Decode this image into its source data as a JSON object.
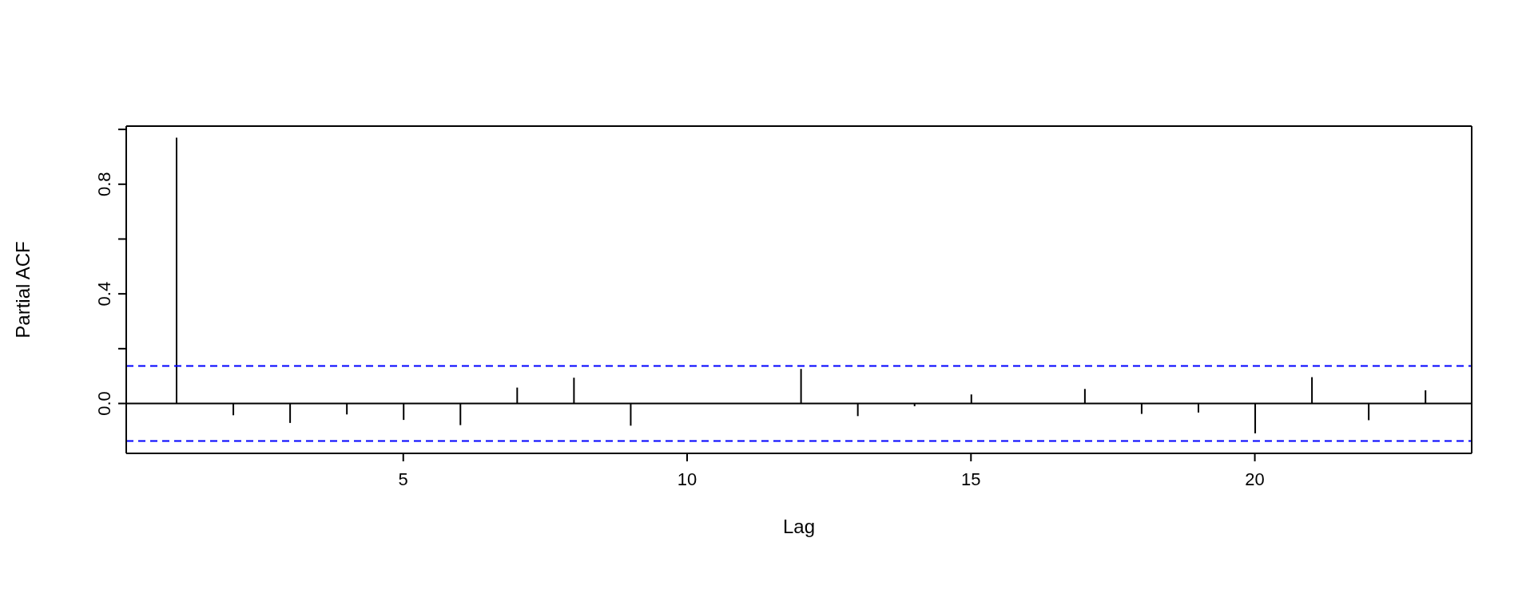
{
  "chart_data": {
    "type": "bar",
    "xlabel": "Lag",
    "ylabel": "Partial ACF",
    "x": [
      1,
      2,
      3,
      4,
      5,
      6,
      7,
      8,
      9,
      10,
      11,
      12,
      13,
      14,
      15,
      16,
      17,
      18,
      19,
      20,
      21,
      22,
      23
    ],
    "series": [
      {
        "color": "#000000",
        "values": [
          0.97,
          -0.043,
          -0.071,
          -0.04,
          -0.06,
          -0.079,
          0.058,
          0.094,
          -0.081,
          null,
          null,
          0.126,
          -0.046,
          -0.01,
          0.033,
          null,
          0.053,
          -0.038,
          -0.033,
          -0.109,
          0.096,
          -0.061,
          0.048
        ]
      }
    ],
    "xlim": [
      0.12,
      23.82
    ],
    "xticks": [
      5,
      10,
      15,
      20
    ],
    "ylim": [
      -0.182,
      1.012
    ],
    "yticks": [
      {
        "value": 0,
        "label": "0.0"
      },
      {
        "value": 0.2,
        "label": null
      },
      {
        "value": 0.4,
        "label": "0.4"
      },
      {
        "value": 0.6,
        "label": null
      },
      {
        "value": 0.8,
        "label": "0.8"
      },
      {
        "value": 1,
        "label": null
      }
    ],
    "ref_lines": [
      {
        "axis": "y",
        "value": 0,
        "color": "#000000",
        "line_style": "solid"
      },
      {
        "axis": "y",
        "value": 0.137,
        "color": "#0000ff",
        "line_style": "dashed"
      },
      {
        "axis": "y",
        "value": -0.137,
        "color": "#0000ff",
        "line_style": "dashed"
      }
    ],
    "grid": false,
    "legend": false
  }
}
